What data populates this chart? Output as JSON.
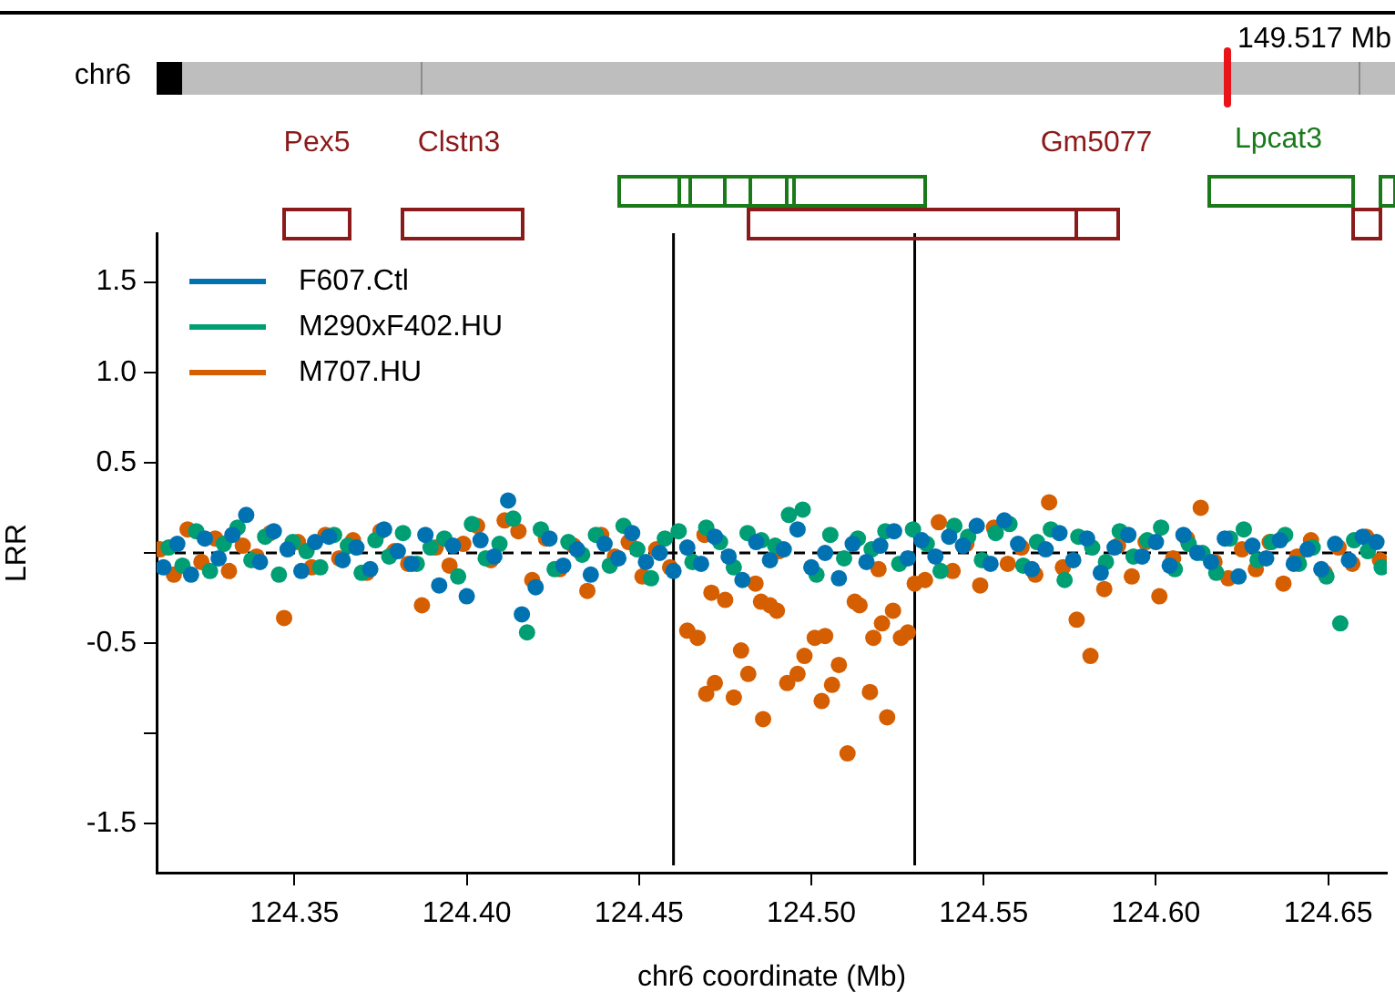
{
  "chart_data": {
    "type": "scatter",
    "xlabel": "chr6 coordinate (Mb)",
    "ylabel": "LRR",
    "xlim": [
      124.31,
      124.667
    ],
    "ylim": [
      -1.77,
      1.77
    ],
    "xticks": [
      124.35,
      {
        "value": 124.4,
        "label": "124.40"
      },
      124.45,
      {
        "value": 124.5,
        "label": "124.50"
      },
      124.55,
      {
        "value": 124.6,
        "label": "124.60"
      },
      124.65
    ],
    "yticks": [
      -1.5,
      {
        "value": -1,
        "label": null
      },
      -0.5,
      {
        "value": 0,
        "label": null
      },
      0.5,
      {
        "value": 1,
        "label": "1.0"
      },
      1.5
    ],
    "grid": false,
    "legend": "top left",
    "marker": "circle",
    "ref_lines": [
      {
        "axis": "x",
        "value": 124.46,
        "color": "#000000"
      },
      {
        "axis": "x",
        "value": 124.53,
        "color": "#000000"
      },
      {
        "axis": "y",
        "value": 0,
        "color": "#000000",
        "line_style": "dashed"
      }
    ],
    "annotations": [
      "chr6",
      "149.517 Mb",
      "Pex5",
      "Clstn3",
      "Gm5077",
      "Lpcat3"
    ],
    "series": [
      {
        "name": "F607.Ctl",
        "color": "#0072b2",
        "x": [
          124.312,
          124.316,
          124.32,
          124.324,
          124.328,
          124.332,
          124.336,
          124.34,
          124.344,
          124.348,
          124.352,
          124.356,
          124.36,
          124.364,
          124.368,
          124.372,
          124.376,
          124.38,
          124.384,
          124.388,
          124.392,
          124.396,
          124.4,
          124.404,
          124.408,
          124.412,
          124.416,
          124.42,
          124.424,
          124.428,
          124.432,
          124.436,
          124.44,
          124.444,
          124.448,
          124.452,
          124.456,
          124.46,
          124.464,
          124.468,
          124.472,
          124.476,
          124.48,
          124.484,
          124.488,
          124.492,
          124.496,
          124.5,
          124.504,
          124.508,
          124.512,
          124.516,
          124.52,
          124.524,
          124.528,
          124.532,
          124.536,
          124.54,
          124.544,
          124.548,
          124.552,
          124.556,
          124.56,
          124.564,
          124.568,
          124.572,
          124.576,
          124.58,
          124.584,
          124.588,
          124.592,
          124.596,
          124.6,
          124.604,
          124.608,
          124.612,
          124.616,
          124.62,
          124.624,
          124.628,
          124.632,
          124.636,
          124.64,
          124.644,
          124.648,
          124.652,
          124.656,
          124.66,
          124.664
        ],
        "values": [
          -0.08,
          0.05,
          -0.12,
          0.08,
          -0.03,
          0.1,
          0.21,
          -0.05,
          0.12,
          0.02,
          -0.1,
          0.06,
          0.09,
          -0.04,
          0.03,
          -0.09,
          0.13,
          0.01,
          -0.06,
          0.1,
          -0.18,
          0.04,
          -0.24,
          0.07,
          -0.02,
          0.29,
          -0.34,
          -0.19,
          0.08,
          -0.07,
          0.02,
          -0.12,
          0.05,
          -0.03,
          0.11,
          -0.05,
          0,
          -0.1,
          0.03,
          -0.06,
          0.09,
          -0.02,
          -0.15,
          0.06,
          -0.04,
          0.02,
          0.13,
          -0.08,
          0,
          -0.14,
          0.05,
          -0.05,
          0.04,
          0.12,
          -0.03,
          0.07,
          -0.02,
          0.09,
          0.04,
          0.15,
          -0.06,
          0.18,
          0.05,
          -0.09,
          0.02,
          0.11,
          -0.04,
          0.08,
          -0.11,
          0.03,
          0.1,
          -0.02,
          0.06,
          -0.07,
          0.1,
          0,
          -0.05,
          0.08,
          -0.13,
          0.04,
          -0.03,
          0.07,
          -0.06,
          0.02,
          -0.09,
          0.05,
          -0.04,
          0.09,
          0.06
        ]
      },
      {
        "name": "M290xF402.HU",
        "color": "#009e73",
        "x": [
          124.3135,
          124.3175,
          124.3215,
          124.3255,
          124.3295,
          124.3335,
          124.3375,
          124.3415,
          124.3455,
          124.3495,
          124.3535,
          124.3575,
          124.3615,
          124.3655,
          124.3695,
          124.3735,
          124.3775,
          124.3815,
          124.3855,
          124.3895,
          124.3935,
          124.3975,
          124.4015,
          124.4055,
          124.4095,
          124.4135,
          124.4175,
          124.4215,
          124.4255,
          124.4295,
          124.4335,
          124.4375,
          124.4415,
          124.4455,
          124.4495,
          124.4535,
          124.4575,
          124.4615,
          124.4655,
          124.4695,
          124.4735,
          124.4775,
          124.4815,
          124.4855,
          124.4895,
          124.4935,
          124.4975,
          124.5015,
          124.5055,
          124.5095,
          124.5135,
          124.5175,
          124.5215,
          124.5255,
          124.5295,
          124.5335,
          124.5375,
          124.5415,
          124.5455,
          124.5495,
          124.5535,
          124.5575,
          124.5615,
          124.5655,
          124.5695,
          124.5735,
          124.5775,
          124.5815,
          124.5855,
          124.5895,
          124.5935,
          124.5975,
          124.6015,
          124.6055,
          124.6095,
          124.6135,
          124.6175,
          124.6215,
          124.6255,
          124.6295,
          124.6335,
          124.6375,
          124.6415,
          124.6455,
          124.6495,
          124.6535,
          124.6575,
          124.6615,
          124.6655
        ],
        "values": [
          0.03,
          -0.07,
          0.12,
          -0.1,
          0.05,
          0.14,
          -0.04,
          0.09,
          -0.12,
          0.06,
          0.01,
          -0.08,
          0.1,
          0.04,
          -0.11,
          0.07,
          -0.02,
          0.11,
          -0.06,
          0.03,
          0.08,
          -0.13,
          0.16,
          -0.03,
          0.05,
          0.19,
          -0.44,
          0.13,
          -0.09,
          0.06,
          -0.01,
          0.1,
          -0.07,
          0.15,
          0.02,
          -0.14,
          0.08,
          0.12,
          -0.05,
          0.14,
          0.06,
          -0.08,
          0.11,
          0.07,
          0.04,
          0.21,
          0.24,
          -0.12,
          0.1,
          -0.03,
          0.08,
          0.02,
          0.12,
          -0.06,
          0.13,
          0.05,
          -0.1,
          0.15,
          0.09,
          -0.04,
          0.11,
          0.16,
          -0.07,
          0.06,
          0.13,
          -0.15,
          0.09,
          0.03,
          -0.05,
          0.12,
          -0.02,
          0.07,
          0.14,
          -0.09,
          0.05,
          0,
          -0.11,
          0.08,
          0.13,
          -0.04,
          0.06,
          0.1,
          -0.06,
          0.03,
          -0.13,
          -0.39,
          0.07,
          0.01,
          -0.08
        ]
      },
      {
        "name": "M707.HU",
        "color": "#d55e00",
        "x": [
          124.311,
          124.315,
          124.319,
          124.323,
          124.327,
          124.331,
          124.335,
          124.339,
          124.343,
          124.347,
          124.351,
          124.355,
          124.359,
          124.363,
          124.367,
          124.371,
          124.375,
          124.379,
          124.383,
          124.387,
          124.391,
          124.395,
          124.399,
          124.403,
          124.407,
          124.411,
          124.415,
          124.419,
          124.423,
          124.427,
          124.431,
          124.435,
          124.439,
          124.443,
          124.447,
          124.451,
          124.455,
          124.459,
          124.464,
          124.467,
          124.469,
          124.4695,
          124.471,
          124.472,
          124.475,
          124.4775,
          124.4796,
          124.4817,
          124.4838,
          124.4854,
          124.486,
          124.488,
          124.49,
          124.4906,
          124.493,
          124.496,
          124.498,
          124.501,
          124.503,
          124.504,
          124.506,
          124.508,
          124.5105,
          124.5126,
          124.514,
          124.517,
          124.518,
          124.5195,
          124.5205,
          124.522,
          124.5237,
          124.526,
          124.528,
          124.53,
          124.533,
          124.537,
          124.541,
          124.545,
          124.549,
          124.553,
          124.557,
          124.561,
          124.565,
          124.569,
          124.573,
          124.577,
          124.581,
          124.585,
          124.589,
          124.593,
          124.597,
          124.601,
          124.605,
          124.609,
          124.613,
          124.617,
          124.621,
          124.625,
          124.629,
          124.633,
          124.637,
          124.641,
          124.645,
          124.649,
          124.653,
          124.657,
          124.661,
          124.665
        ],
        "values": [
          0.02,
          -0.12,
          0.13,
          -0.05,
          0.08,
          -0.1,
          0.04,
          -0.02,
          0.11,
          -0.36,
          0.06,
          -0.08,
          0.1,
          -0.03,
          0.07,
          -0.11,
          0.12,
          0.01,
          -0.06,
          -0.29,
          0.03,
          -0.07,
          0.05,
          0.15,
          -0.04,
          0.18,
          0.12,
          -0.15,
          0.08,
          -0.09,
          0.04,
          -0.21,
          0.1,
          -0.02,
          0.06,
          -0.13,
          0.02,
          -0.08,
          -0.43,
          -0.47,
          0.1,
          -0.78,
          -0.22,
          -0.72,
          -0.26,
          -0.8,
          -0.54,
          -0.67,
          -0.17,
          -0.27,
          -0.92,
          -0.29,
          -0.32,
          0.01,
          -0.72,
          -0.67,
          -0.57,
          -0.47,
          -0.82,
          -0.46,
          -0.73,
          -0.62,
          -1.11,
          -0.27,
          -0.29,
          -0.77,
          -0.47,
          -0.09,
          -0.39,
          -0.91,
          -0.32,
          -0.47,
          -0.44,
          -0.17,
          -0.15,
          0.17,
          -0.1,
          0.05,
          -0.18,
          0.14,
          -0.06,
          0.03,
          -0.12,
          0.28,
          -0.08,
          -0.37,
          -0.57,
          -0.2,
          0.04,
          -0.13,
          0.06,
          -0.24,
          -0.03,
          0.08,
          0.25,
          -0.05,
          -0.14,
          0.02,
          -0.09,
          0.06,
          -0.17,
          -0.02,
          0.07,
          -0.11,
          0.03,
          -0.06,
          0.09,
          -0.04
        ]
      }
    ]
  }
}
